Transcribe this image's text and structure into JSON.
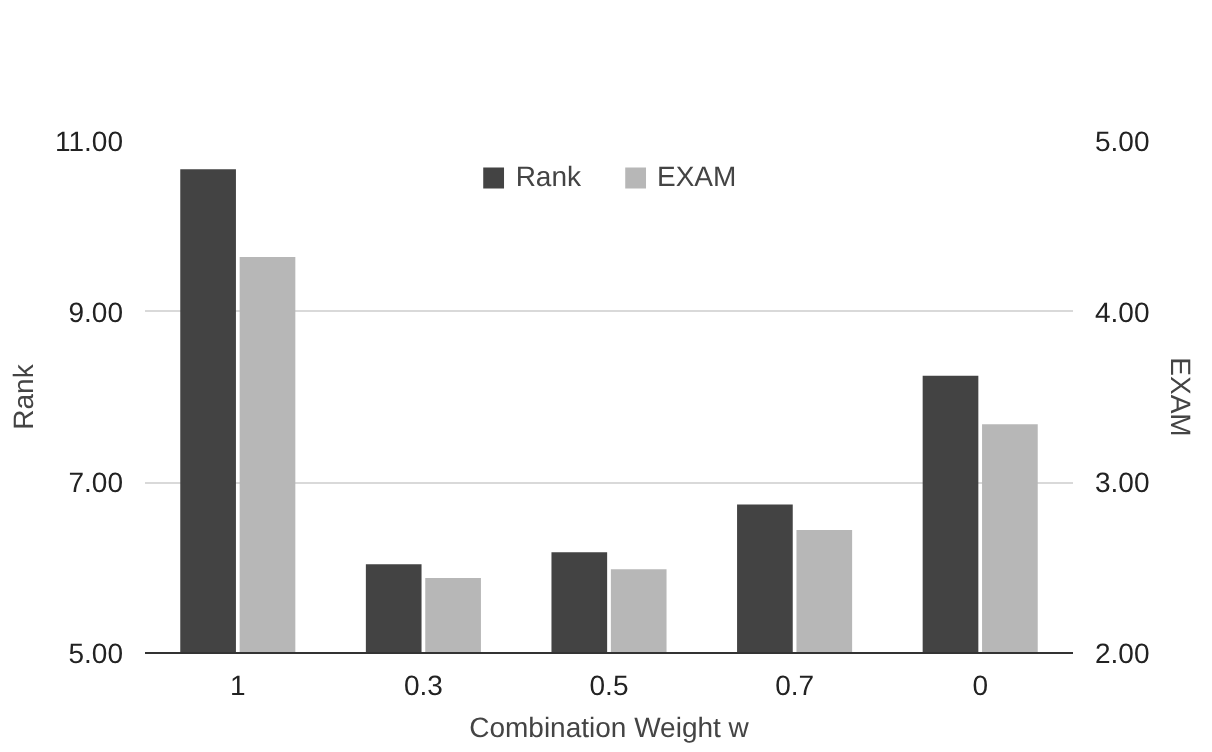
{
  "chart_data": {
    "type": "bar",
    "xlabel": "Combination Weight w",
    "ylabel": "Rank",
    "y2label": "EXAM",
    "categories": [
      "1",
      "0.3",
      "0.5",
      "0.7",
      "0"
    ],
    "series": [
      {
        "name": "Rank",
        "color": "#434343",
        "values": [
          10.67,
          6.04,
          6.18,
          6.74,
          8.25
        ]
      },
      {
        "name": "EXAM",
        "color": "#b7b7b7",
        "axis": "y2",
        "values": [
          4.32,
          2.44,
          2.49,
          2.72,
          3.34
        ]
      }
    ],
    "ylim": [
      5,
      11
    ],
    "yticks": [
      {
        "value": 5,
        "label": "5.00"
      },
      {
        "value": 7,
        "label": "7.00"
      },
      {
        "value": 9,
        "label": "9.00"
      },
      {
        "value": 11,
        "label": "11.00"
      }
    ],
    "y2lim": [
      2,
      5
    ],
    "y2ticks": [
      {
        "value": 2,
        "label": "2.00"
      },
      {
        "value": 3,
        "label": "3.00"
      },
      {
        "value": 4,
        "label": "4.00"
      },
      {
        "value": 5,
        "label": "5.00"
      }
    ],
    "grid": "y",
    "legend": "top"
  }
}
